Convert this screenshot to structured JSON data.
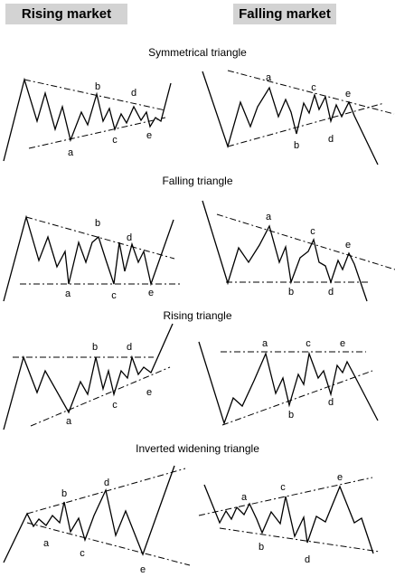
{
  "headers": {
    "rising": "Rising market",
    "falling": "Falling market"
  },
  "sections": [
    {
      "title": "Symmetrical triangle"
    },
    {
      "title": "Falling triangle"
    },
    {
      "title": "Rising triangle"
    },
    {
      "title": "Inverted widening triangle"
    }
  ],
  "point_labels": [
    "a",
    "b",
    "c",
    "d",
    "e"
  ],
  "colors": {
    "line": "#000000",
    "header_bg": "#d3d3d3"
  }
}
